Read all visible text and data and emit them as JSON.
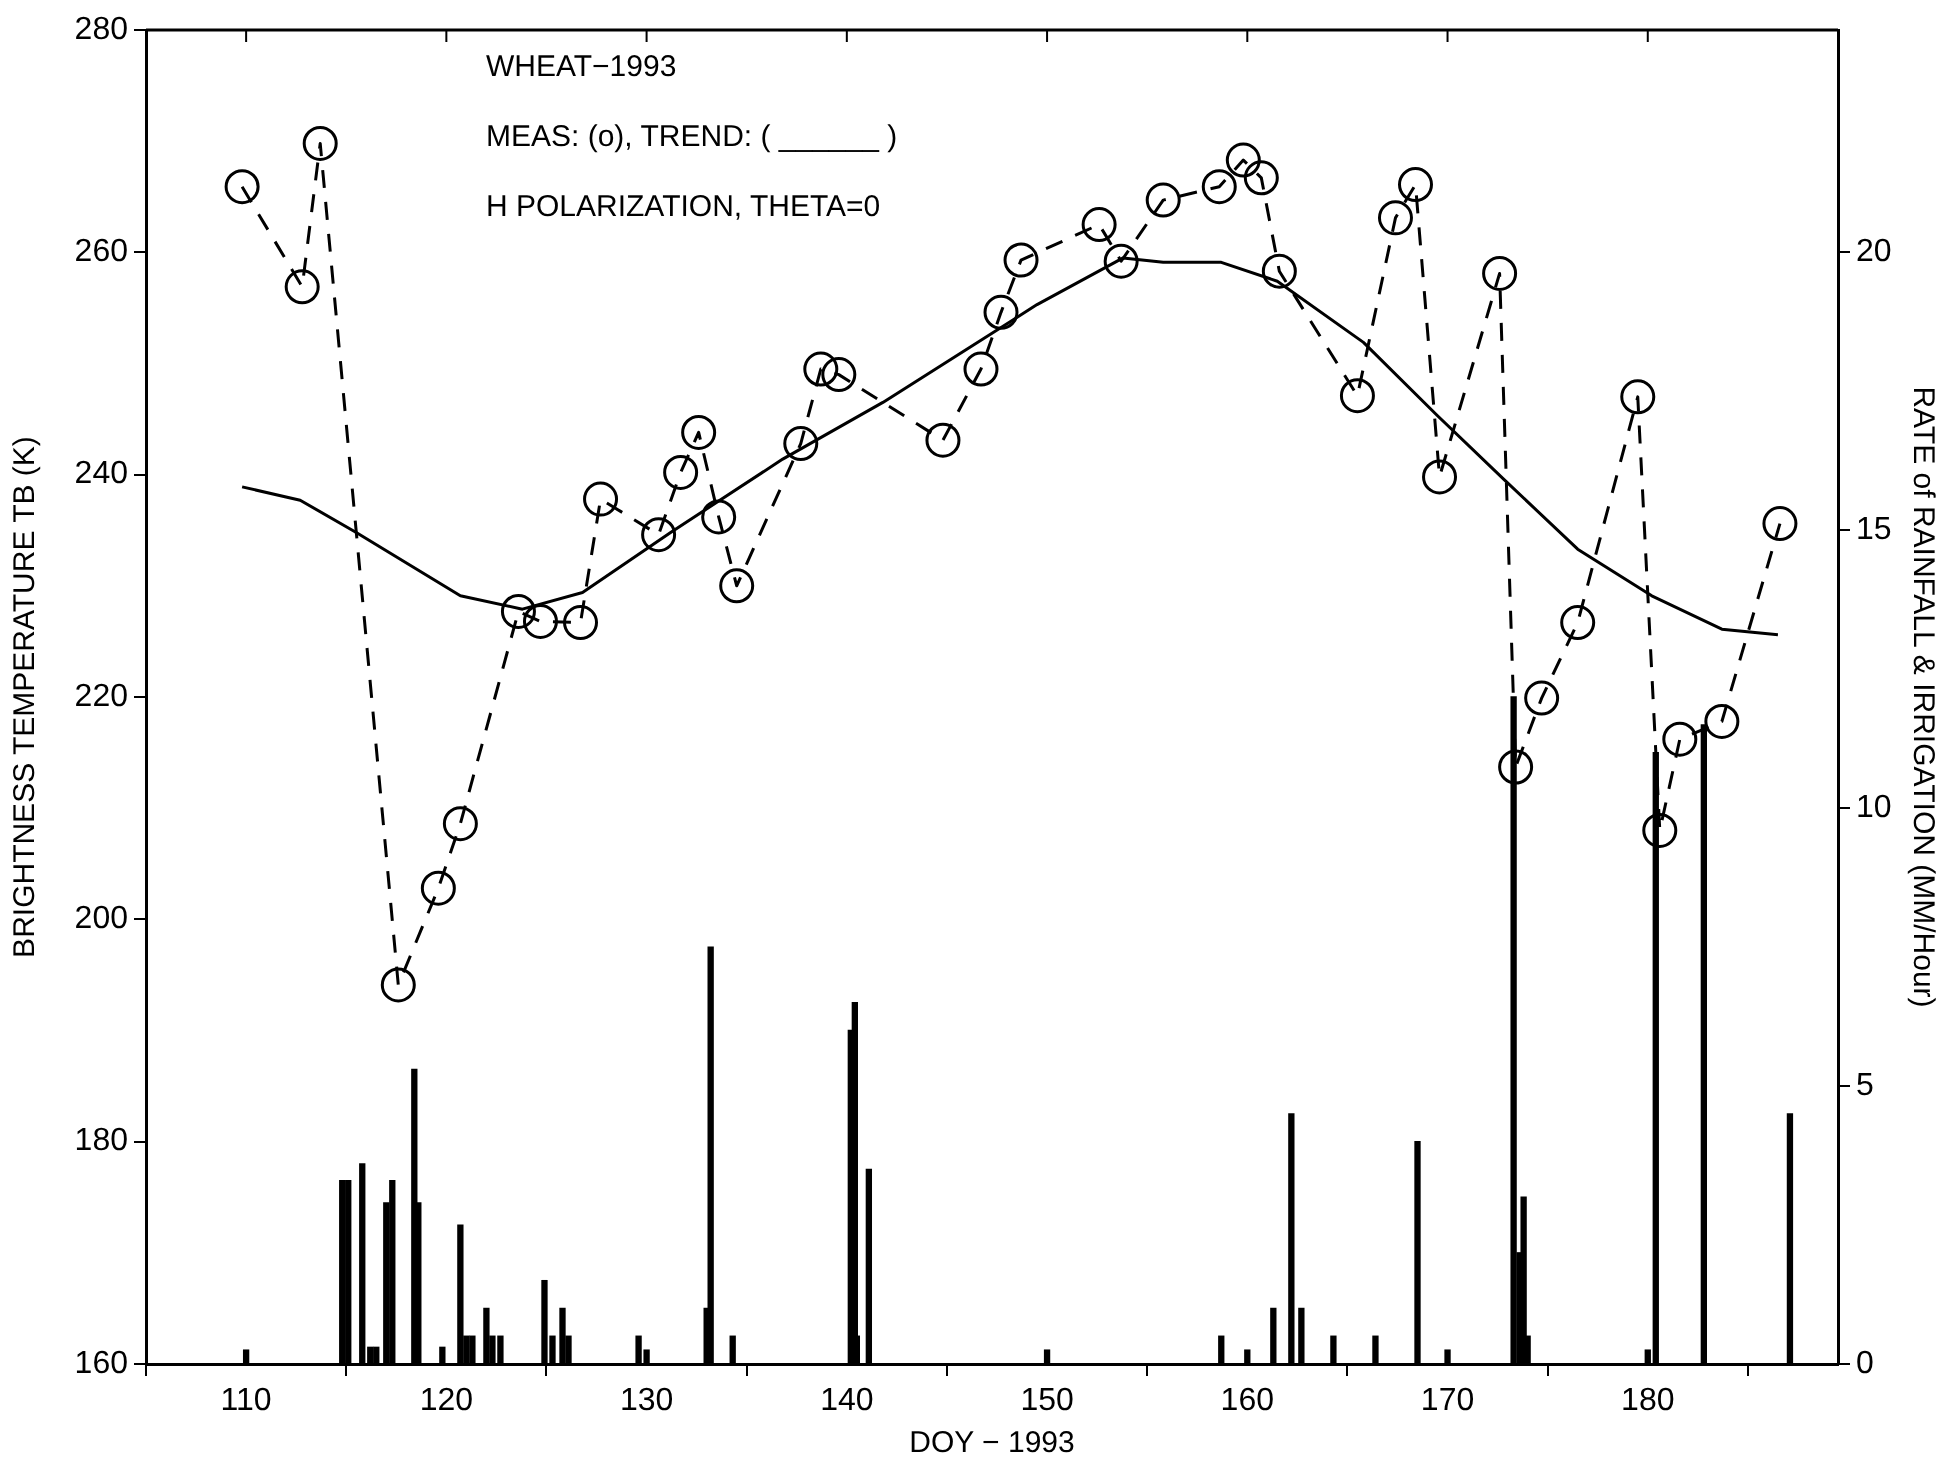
{
  "chart_data": {
    "type": "line",
    "xlabel": "DOY − 1993",
    "ylabel": "BRIGHTNESS TEMPERATURE TB (K)",
    "y2label": "RATE of RAINFALL & IRRIGATION (MM/Hour)",
    "annotations": [
      "WHEAT−1993",
      "MEAS: (o), TREND: ( ______ )",
      "H POLARIZATION, THETA=0"
    ],
    "xlim": [
      105,
      189.5
    ],
    "xticks": [
      110,
      120,
      130,
      140,
      150,
      160,
      170,
      180
    ],
    "ylim": [
      160,
      280
    ],
    "yticks": [
      160,
      180,
      200,
      220,
      240,
      260,
      280
    ],
    "y2lim": [
      0,
      24
    ],
    "y2ticks": [
      0,
      5,
      10,
      15,
      20
    ],
    "grid": false,
    "legend": false,
    "series": [
      {
        "color": "#000000",
        "marker": "circle",
        "line_style": "dashed",
        "x": [
          109.8,
          112.8,
          113.7,
          117.6,
          119.6,
          120.7,
          123.6,
          124.7,
          126.7,
          127.7,
          130.6,
          131.7,
          132.6,
          133.6,
          134.5,
          137.7,
          138.7,
          139.6,
          144.8,
          146.7,
          147.7,
          148.7,
          152.6,
          153.7,
          155.8,
          158.6,
          159.8,
          160.7,
          161.6,
          165.5,
          167.4,
          168.4,
          169.6,
          172.6,
          173.4,
          174.7,
          176.5,
          179.5,
          180.6,
          181.6,
          183.7,
          186.6
        ],
        "values": [
          265.9,
          256.9,
          269.8,
          194.1,
          202.8,
          208.6,
          227.7,
          226.8,
          226.7,
          237.8,
          234.6,
          240.2,
          243.8,
          236.2,
          230.0,
          242.8,
          249.5,
          249.0,
          243.1,
          249.5,
          254.6,
          259.3,
          262.5,
          259.2,
          264.7,
          265.9,
          268.3,
          266.7,
          258.3,
          247.1,
          263.1,
          266.1,
          239.8,
          258.1,
          213.7,
          219.9,
          226.7,
          247.0,
          208.0,
          216.2,
          217.8,
          235.6
        ]
      },
      {
        "color": "#000000",
        "marker": "none",
        "line_style": "solid",
        "x": [
          109.8,
          112.7,
          115.5,
          120.7,
          123.8,
          126.8,
          131.2,
          136.8,
          141.8,
          149.5,
          153.8,
          155.8,
          158.7,
          161.5,
          165.8,
          169.5,
          172.8,
          176.5,
          180.2,
          183.7,
          186.5
        ],
        "values": [
          238.9,
          237.7,
          234.8,
          229.1,
          227.9,
          229.4,
          234.8,
          241.4,
          246.5,
          255.3,
          259.5,
          259.1,
          259.1,
          257.4,
          251.9,
          245.3,
          239.6,
          233.3,
          229.1,
          226.1,
          225.6
        ]
      },
      {
        "type": "bar",
        "axis": "y2",
        "color": "#000000",
        "x": [
          110.0,
          114.8,
          115.1,
          115.8,
          116.2,
          116.5,
          117.0,
          117.3,
          118.4,
          118.6,
          119.8,
          120.7,
          121.0,
          121.3,
          122.0,
          122.3,
          122.7,
          124.9,
          125.3,
          125.8,
          126.1,
          129.6,
          130.0,
          133.0,
          133.2,
          134.3,
          140.1,
          140.2,
          140.4,
          140.5,
          141.1,
          150.0,
          158.7,
          160.0,
          161.2,
          161.3,
          162.2,
          162.7,
          164.3,
          166.4,
          168.5,
          170.0,
          173.3,
          173.6,
          173.8,
          174.0,
          180.0,
          180.4,
          182.7,
          182.8,
          187.1
        ],
        "values": [
          0.25,
          3.3,
          3.3,
          3.6,
          0.3,
          0.3,
          2.9,
          3.3,
          5.3,
          2.9,
          0.3,
          2.5,
          0.5,
          0.5,
          1.0,
          0.5,
          0.5,
          1.5,
          0.5,
          1.0,
          0.5,
          0.5,
          0.25,
          1.0,
          7.5,
          0.5,
          null,
          6.0,
          6.5,
          0.5,
          3.5,
          0.25,
          0.5,
          0.25,
          null,
          1.0,
          4.5,
          1.0,
          0.5,
          0.5,
          4.0,
          0.25,
          12.0,
          2.0,
          3.0,
          0.5,
          0.25,
          11.0,
          null,
          11.5,
          4.5
        ]
      }
    ]
  }
}
